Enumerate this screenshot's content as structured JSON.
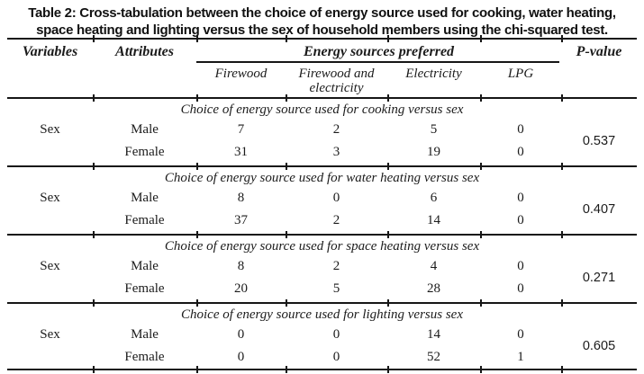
{
  "title": {
    "line1": "Table 2: Cross-tabulation between the choice of energy source used for cooking, water heating,",
    "line2": "space heating and lighting versus the sex of household members using the chi-squared test."
  },
  "header": {
    "variables": "Variables",
    "attributes": "Attributes",
    "energy_group": "Energy sources preferred",
    "p_value": "P-value",
    "energy_columns": [
      "Firewood",
      "Firewood and electricity",
      "Electricity",
      "LPG"
    ]
  },
  "sections": [
    {
      "caption": "Choice of energy source used for cooking versus sex",
      "variable": "Sex",
      "p_value": "0.537",
      "rows": [
        {
          "attribute": "Male",
          "values": [
            "7",
            "2",
            "5",
            "0"
          ]
        },
        {
          "attribute": "Female",
          "values": [
            "31",
            "3",
            "19",
            "0"
          ]
        }
      ]
    },
    {
      "caption": "Choice of energy source used for water heating versus sex",
      "variable": "Sex",
      "p_value": "0.407",
      "rows": [
        {
          "attribute": "Male",
          "values": [
            "8",
            "0",
            "6",
            "0"
          ]
        },
        {
          "attribute": "Female",
          "values": [
            "37",
            "2",
            "14",
            "0"
          ]
        }
      ]
    },
    {
      "caption": "Choice of energy source used for space heating versus sex",
      "variable": "Sex",
      "p_value": "0.271",
      "rows": [
        {
          "attribute": "Male",
          "values": [
            "8",
            "2",
            "4",
            "0"
          ]
        },
        {
          "attribute": "Female",
          "values": [
            "20",
            "5",
            "28",
            "0"
          ]
        }
      ]
    },
    {
      "caption": "Choice of energy source used for lighting versus sex",
      "variable": "Sex",
      "p_value": "0.605",
      "rows": [
        {
          "attribute": "Male",
          "values": [
            "0",
            "0",
            "14",
            "0"
          ]
        },
        {
          "attribute": "Female",
          "values": [
            "0",
            "0",
            "52",
            "1"
          ]
        }
      ]
    }
  ]
}
